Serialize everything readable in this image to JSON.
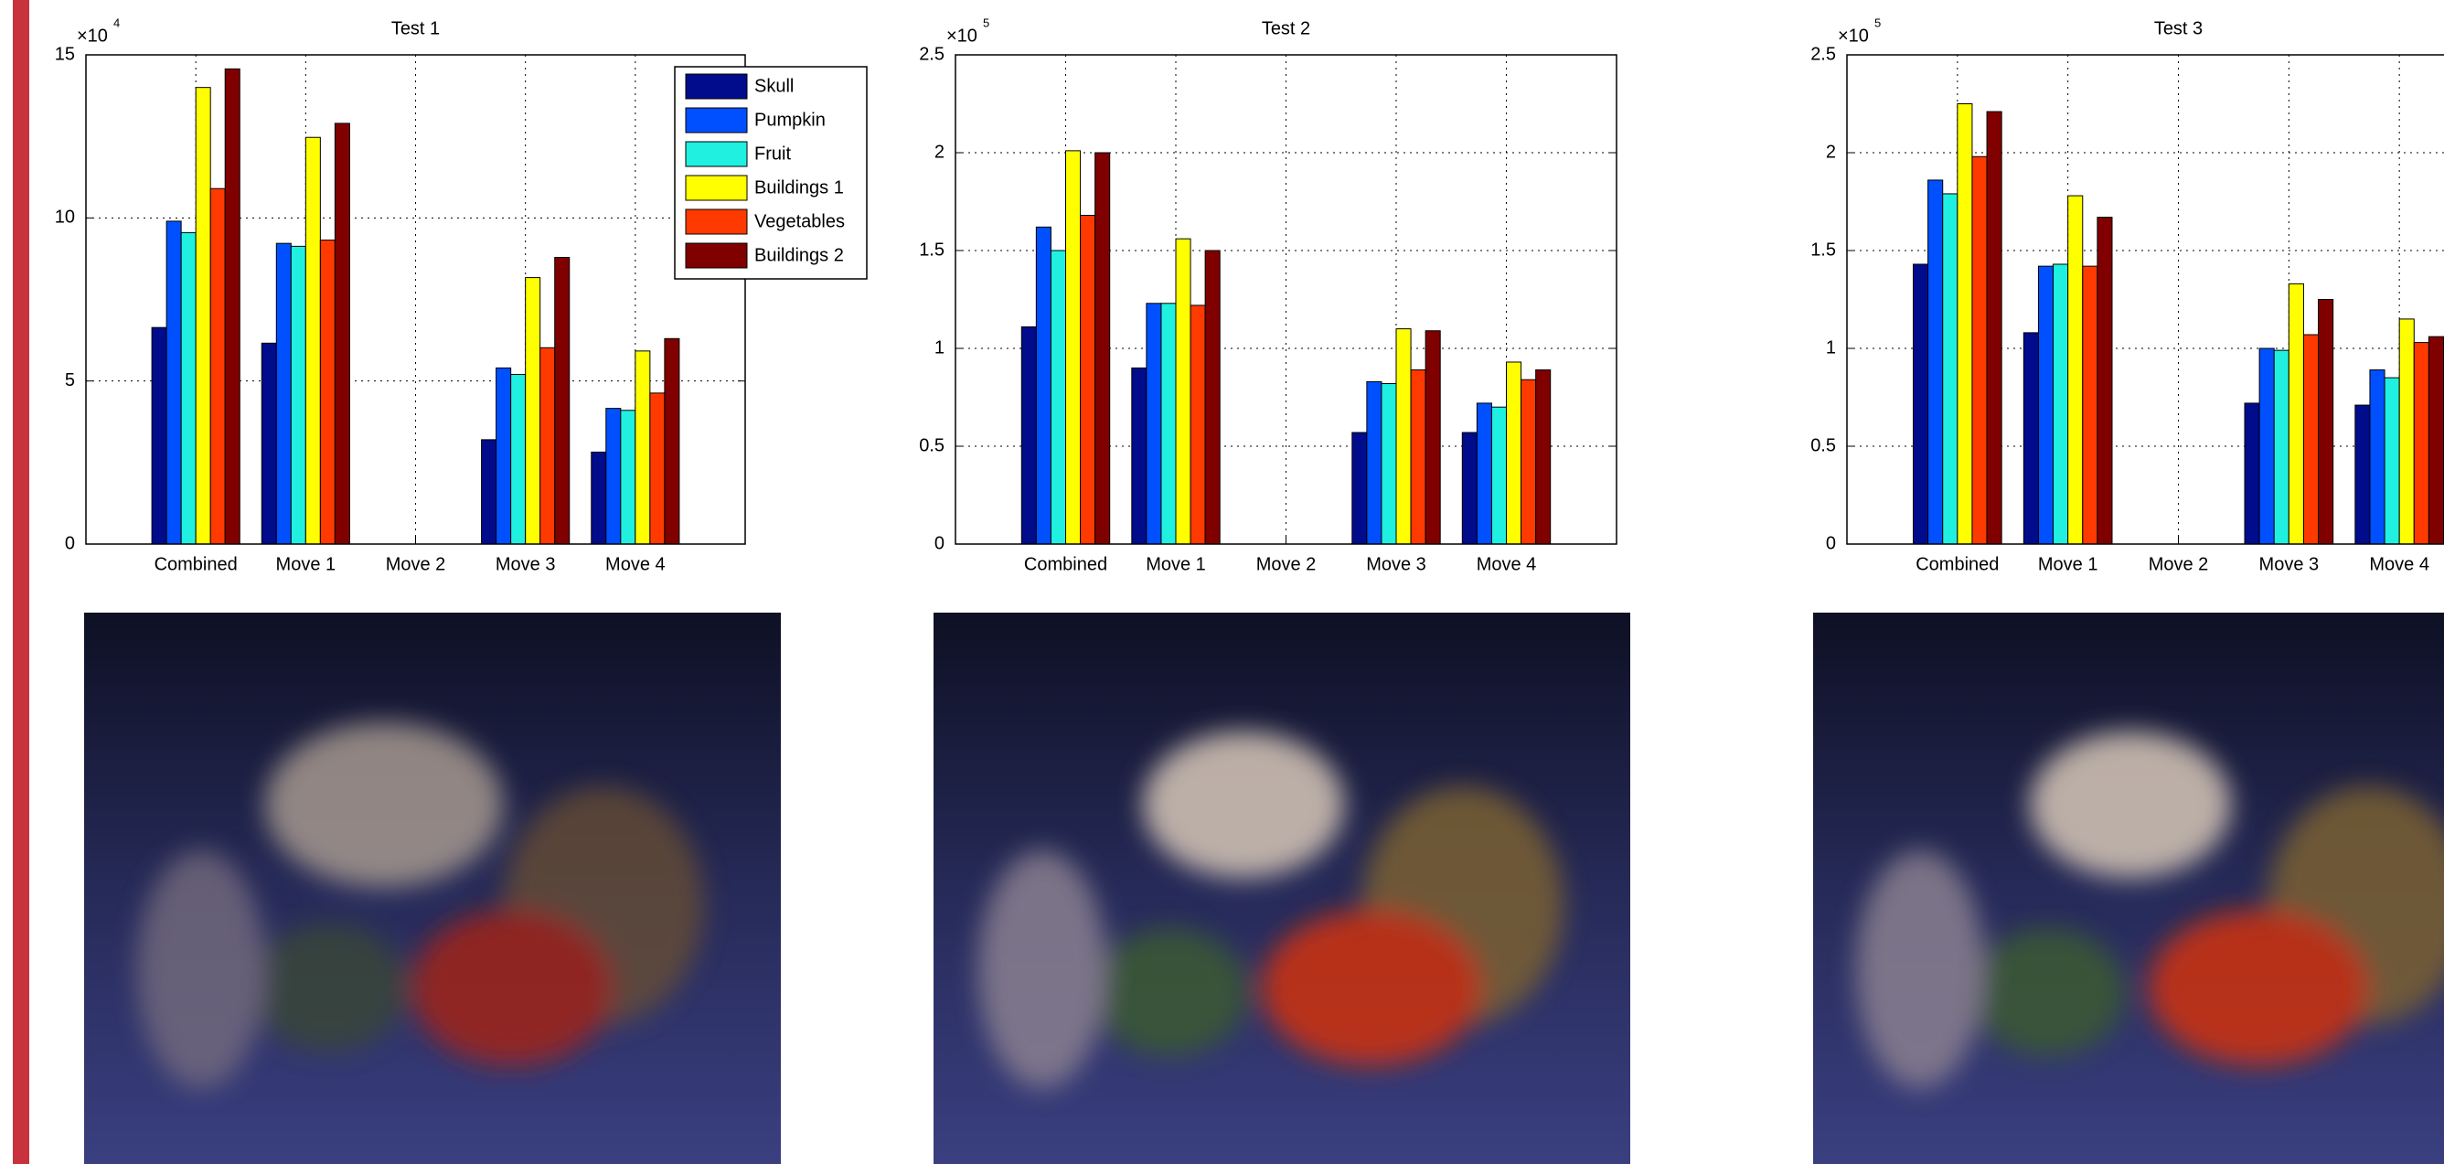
{
  "chart_data": [
    {
      "type": "bar",
      "title": "Test 1",
      "y_multiplier": "×10",
      "y_multiplier_exponent": "4",
      "categories": [
        "Combined",
        "Move 1",
        "Move 2",
        "Move 3",
        "Move 4"
      ],
      "series": [
        {
          "name": "Skull",
          "color": "#000c8c",
          "values": [
            6.64,
            6.16,
            null,
            3.2,
            2.82
          ]
        },
        {
          "name": "Pumpkin",
          "color": "#0050ff",
          "values": [
            9.9,
            9.22,
            null,
            5.4,
            4.16
          ]
        },
        {
          "name": "Fruit",
          "color": "#20f0e0",
          "values": [
            9.55,
            9.13,
            null,
            5.2,
            4.1
          ]
        },
        {
          "name": "Buildings 1",
          "color": "#ffff00",
          "values": [
            14.0,
            12.47,
            null,
            8.17,
            5.92
          ]
        },
        {
          "name": "Vegetables",
          "color": "#ff3a00",
          "values": [
            10.9,
            9.32,
            null,
            6.02,
            4.63
          ]
        },
        {
          "name": "Buildings 2",
          "color": "#800000",
          "values": [
            14.57,
            12.9,
            null,
            8.79,
            6.3
          ]
        }
      ],
      "ylim": [
        0,
        15
      ],
      "yticks": [
        0,
        5,
        10,
        15
      ],
      "grid": true,
      "legend": "upper right"
    },
    {
      "type": "bar",
      "title": "Test 2",
      "y_multiplier": "×10",
      "y_multiplier_exponent": "5",
      "categories": [
        "Combined",
        "Move 1",
        "Move 2",
        "Move 3",
        "Move 4"
      ],
      "series": [
        {
          "name": "Skull",
          "color": "#000c8c",
          "values": [
            1.11,
            0.9,
            null,
            0.57,
            0.57
          ]
        },
        {
          "name": "Pumpkin",
          "color": "#0050ff",
          "values": [
            1.62,
            1.23,
            null,
            0.83,
            0.72
          ]
        },
        {
          "name": "Fruit",
          "color": "#20f0e0",
          "values": [
            1.5,
            1.23,
            null,
            0.82,
            0.7
          ]
        },
        {
          "name": "Buildings 1",
          "color": "#ffff00",
          "values": [
            2.01,
            1.56,
            null,
            1.1,
            0.93
          ]
        },
        {
          "name": "Vegetables",
          "color": "#ff3a00",
          "values": [
            1.68,
            1.22,
            null,
            0.89,
            0.84
          ]
        },
        {
          "name": "Buildings 2",
          "color": "#800000",
          "values": [
            2.0,
            1.5,
            null,
            1.09,
            0.89
          ]
        }
      ],
      "ylim": [
        0,
        2.5
      ],
      "yticks": [
        0,
        0.5,
        1,
        1.5,
        2,
        2.5
      ],
      "grid": true
    },
    {
      "type": "bar",
      "title": "Test 3",
      "y_multiplier": "×10",
      "y_multiplier_exponent": "5",
      "categories": [
        "Combined",
        "Move 1",
        "Move 2",
        "Move 3",
        "Move 4"
      ],
      "series": [
        {
          "name": "Skull",
          "color": "#000c8c",
          "values": [
            1.43,
            1.08,
            null,
            0.72,
            0.71
          ]
        },
        {
          "name": "Pumpkin",
          "color": "#0050ff",
          "values": [
            1.86,
            1.42,
            null,
            1.0,
            0.89
          ]
        },
        {
          "name": "Fruit",
          "color": "#20f0e0",
          "values": [
            1.79,
            1.43,
            null,
            0.99,
            0.85
          ]
        },
        {
          "name": "Buildings 1",
          "color": "#ffff00",
          "values": [
            2.25,
            1.78,
            null,
            1.33,
            1.15
          ]
        },
        {
          "name": "Vegetables",
          "color": "#ff3a00",
          "values": [
            1.98,
            1.42,
            null,
            1.07,
            1.03
          ]
        },
        {
          "name": "Buildings 2",
          "color": "#800000",
          "values": [
            2.21,
            1.67,
            null,
            1.25,
            1.06
          ]
        }
      ],
      "ylim": [
        0,
        2.5
      ],
      "yticks": [
        0,
        0.5,
        1,
        1.5,
        2,
        2.5
      ],
      "grid": true
    }
  ]
}
